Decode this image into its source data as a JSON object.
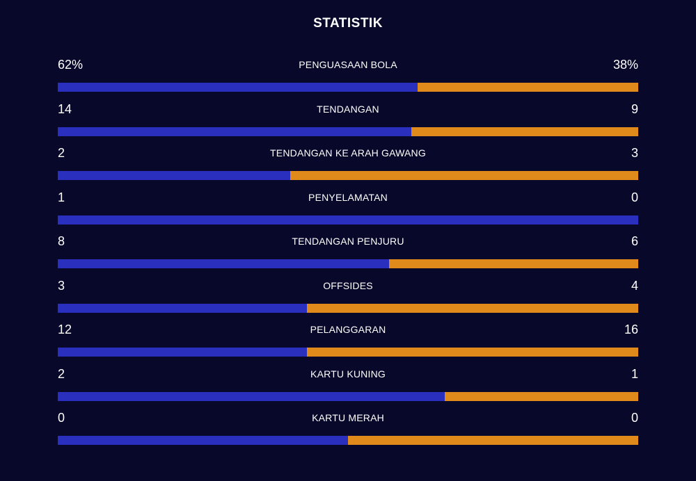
{
  "title": "STATISTIK",
  "colors": {
    "home": "#2b2fbd",
    "away": "#e08a1c",
    "background": "#08082a"
  },
  "stats": [
    {
      "label": "PENGUASAAN BOLA",
      "home": "62%",
      "away": "38%",
      "home_share": 0.62
    },
    {
      "label": "TENDANGAN",
      "home": "14",
      "away": "9",
      "home_share": 0.609
    },
    {
      "label": "TENDANGAN KE ARAH GAWANG",
      "home": "2",
      "away": "3",
      "home_share": 0.4
    },
    {
      "label": "PENYELAMATAN",
      "home": "1",
      "away": "0",
      "home_share": 1.0
    },
    {
      "label": "TENDANGAN PENJURU",
      "home": "8",
      "away": "6",
      "home_share": 0.571
    },
    {
      "label": "OFFSIDES",
      "home": "3",
      "away": "4",
      "home_share": 0.429
    },
    {
      "label": "PELANGGARAN",
      "home": "12",
      "away": "16",
      "home_share": 0.429
    },
    {
      "label": "KARTU KUNING",
      "home": "2",
      "away": "1",
      "home_share": 0.667
    },
    {
      "label": "KARTU MERAH",
      "home": "0",
      "away": "0",
      "home_share": 0.5
    }
  ]
}
